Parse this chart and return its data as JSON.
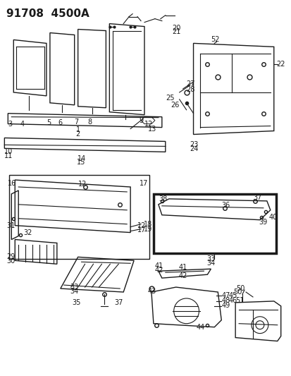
{
  "title": "91708  4500A",
  "bg_color": "#ffffff",
  "line_color": "#1a1a1a",
  "text_color": "#1a1a1a",
  "title_fontsize": 11,
  "label_fontsize": 7,
  "fig_width": 4.14,
  "fig_height": 5.33,
  "dpi": 100
}
